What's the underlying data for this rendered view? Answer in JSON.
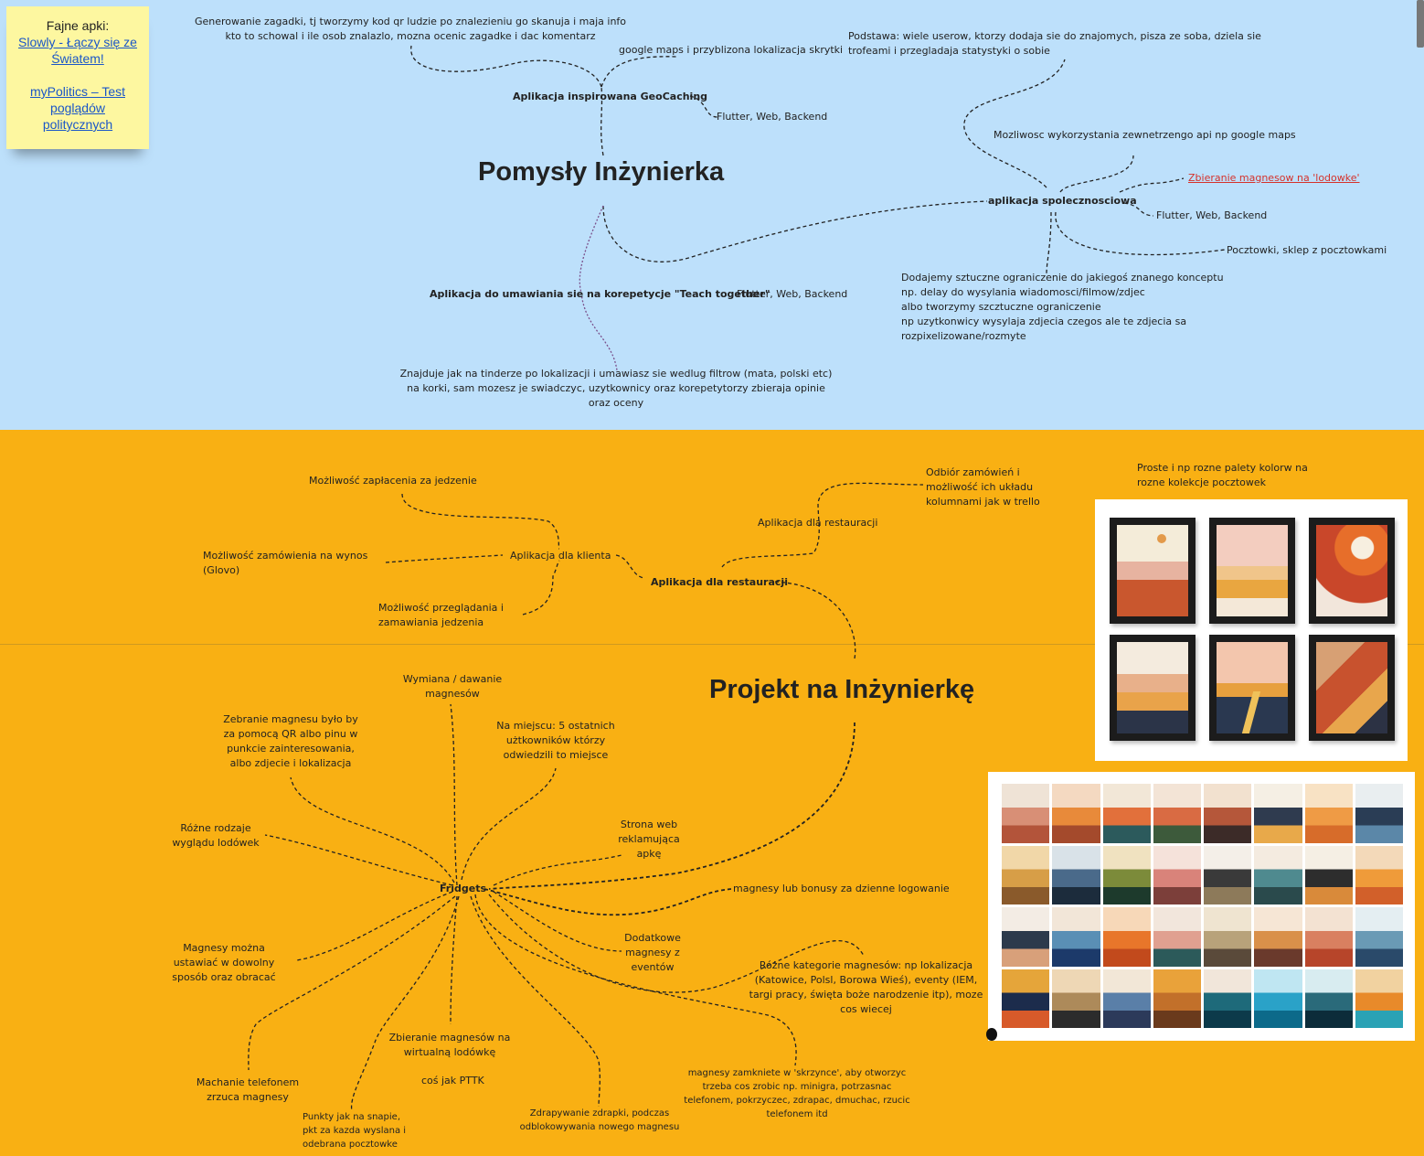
{
  "sticky": {
    "heading": "Fajne apki:",
    "links": [
      "Slowly - Łączy się ze Światem!",
      "myPolitics – Test poglądów politycznych"
    ]
  },
  "top_board": {
    "title": "Pomysły Inżynierka",
    "geocaching": {
      "label": "Aplikacja inspirowana GeoCaching",
      "desc": "Generowanie zagadki, tj tworzymy kod qr ludzie po znalezieniu go skanuja i maja info kto to schowal i ile osob znalazlo, mozna ocenic zagadke i dac komentarz",
      "maps": "google maps i przyblizona lokalizacja skrytki",
      "tech": "Flutter, Web, Backend"
    },
    "social": {
      "label": "aplikacja spolecznosciowa",
      "base": "Podstawa: wiele userow, ktorzy dodaja sie do znajomych, pisza ze soba, dziela sie trofeami i przegladaja statystyki o sobie",
      "api": "Mozliwosc wykorzystania zewnetrzengo api np google maps",
      "magnets": "Zbieranie magnesow na 'lodowke'",
      "tech": "Flutter, Web, Backend",
      "postcards": "Pocztowki, sklep z pocztowkami",
      "limits": [
        "Dodajemy sztuczne ograniczenie do jakiegoś znanego konceptu",
        "np. delay do wysylania wiadomosci/filmow/zdjec",
        "albo tworzymy szcztuczne ograniczenie",
        "np uzytkonwicy wysylaja zdjecia czegos ale te zdjecia sa",
        "rozpixelizowane/rozmyte"
      ]
    },
    "tutoring": {
      "label": "Aplikacja do umawiania sie na korepetycje \"Teach together\"",
      "tech": "Flutter, Web, Backend",
      "desc": "Znajduje jak na tinderze po lokalizacji i umawiasz sie wedlug filtrow (mata, polski etc) na korki, sam mozesz je swiadczyc, uzytkownicy oraz korepetytorzy zbieraja opinie oraz oceny"
    }
  },
  "bottom_board": {
    "title": "Projekt na Inżynierkę",
    "restaurant": {
      "label": "Aplikacja dla restauracji",
      "client_app": "Aplikacja dla klienta",
      "restaurant_app": "Aplikacja dla restauracji",
      "pay": "Możliwość zapłacenia za jedzenie",
      "takeaway": "Możliwość zamówienia na wynos (Glovo)",
      "browse": "Możliwość przeglądania i zamawiania jedzenia",
      "receive": "Odbiór zamówień i możliwość ich układu kolumnami jak w trello"
    },
    "postcards_note": "Proste i np rozne palety kolorw na rozne kolekcje pocztowek",
    "fridgets": {
      "label": "Fridgets",
      "exchange": "Wymiana / dawanie magnesów",
      "collect_qr": "Zebranie magnesu było by za pomocą QR albo pinu w punkcie zainteresowania, albo zdjecie i lokalizacja",
      "on_site": "Na miejscu: 5 ostatnich użtkowników którzy odwiedzili to miejsce",
      "fridge_looks": "Różne rodzaje wyglądu lodówek",
      "website": "Strona web reklamująca apkę",
      "daily_login": "magnesy lub bonusy za dzienne logowanie",
      "events": "Dodatkowe magnesy z eventów",
      "categories": "Różne kategorie magnesów: np lokalizacja (Katowice, Polsl, Borowa Wieś), eventy (IEM, targi pracy, święta boże narodzenie itp), moze cos wiecej",
      "arrange": "Magnesy można ustawiać w dowolny sposób oraz obracać",
      "shake": "Machanie telefonem zrzuca magnesy",
      "virtual_fridge": "Zbieranie magnesów na wirtualną lodówkę",
      "pttk": "coś jak PTTK",
      "snap_points": "Punkty jak na snapie, pkt za kazda wyslana i odebrana pocztowke",
      "scratch": "Zdrapywanie zdrapki, podczas odblokowywania nowego magnesu",
      "box": "magnesy zamkniete w 'skrzynce', aby otworzyc trzeba cos zrobic np. minigra, potrzasnac telefonem, pokrzyczec, zdrapac, dmuchac, rzucic telefonem itd"
    }
  }
}
